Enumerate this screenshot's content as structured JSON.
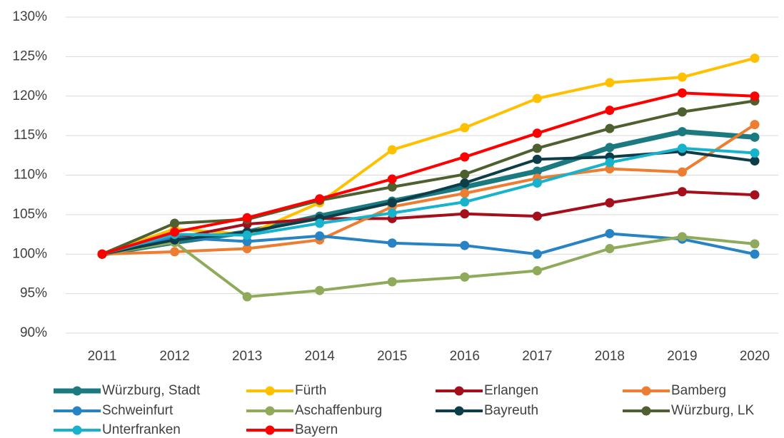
{
  "chart_data": {
    "type": "line",
    "x": [
      "2011",
      "2012",
      "2013",
      "2014",
      "2015",
      "2016",
      "2017",
      "2018",
      "2019",
      "2020"
    ],
    "ylim": [
      90,
      130
    ],
    "yticks": [
      {
        "value": 90,
        "label": "90%"
      },
      {
        "value": 95,
        "label": "95%"
      },
      {
        "value": 100,
        "label": "100%"
      },
      {
        "value": 105,
        "label": "105%"
      },
      {
        "value": 110,
        "label": "110%"
      },
      {
        "value": 115,
        "label": "115%"
      },
      {
        "value": 120,
        "label": "120%"
      },
      {
        "value": 125,
        "label": "125%"
      },
      {
        "value": 130,
        "label": "130%"
      }
    ],
    "grid": true,
    "legend": "bottom",
    "series": [
      {
        "name": "Würzburg, Stadt",
        "color": "#1b7a80",
        "values": [
          100,
          101.5,
          102.8,
          104.8,
          106.7,
          108.5,
          110.5,
          113.5,
          115.5,
          114.8
        ]
      },
      {
        "name": "Fürth",
        "color": "#ffc000",
        "values": [
          100,
          103.2,
          102.5,
          106.5,
          113.2,
          116,
          119.7,
          121.7,
          122.4,
          124.8
        ]
      },
      {
        "name": "Erlangen",
        "color": "#a50f1c",
        "values": [
          100,
          102,
          103.8,
          104.5,
          104.5,
          105.1,
          104.8,
          106.5,
          107.9,
          107.5
        ]
      },
      {
        "name": "Bamberg",
        "color": "#ed7d31",
        "values": [
          100,
          100.3,
          100.7,
          101.8,
          106,
          107.7,
          109.6,
          110.8,
          110.4,
          116.4
        ]
      },
      {
        "name": "Schweinfurt",
        "color": "#2883c4",
        "values": [
          100,
          102.1,
          101.6,
          102.3,
          101.4,
          101.1,
          100,
          102.6,
          101.9,
          100
        ]
      },
      {
        "name": "Aschaffenburg",
        "color": "#8faa5a",
        "values": [
          100,
          101.5,
          94.6,
          95.4,
          96.5,
          97.1,
          97.9,
          100.7,
          102.2,
          101.3
        ]
      },
      {
        "name": "Bayreuth",
        "color": "#0e3d4a",
        "values": [
          100,
          101.8,
          102.8,
          104.5,
          106.5,
          109,
          112,
          112.3,
          113,
          111.8
        ]
      },
      {
        "name": "Würzburg, LK",
        "color": "#4e5f30",
        "values": [
          100,
          103.9,
          104.4,
          106.8,
          108.5,
          110.1,
          113.4,
          115.9,
          118,
          119.4
        ]
      },
      {
        "name": "Unterfranken",
        "color": "#17b3cc",
        "values": [
          100,
          102.5,
          102.4,
          103.9,
          105.2,
          106.6,
          109,
          111.6,
          113.4,
          112.8
        ]
      },
      {
        "name": "Bayern",
        "color": "#ff0000",
        "values": [
          100,
          102.8,
          104.6,
          107,
          109.5,
          112.3,
          115.3,
          118.2,
          120.4,
          120
        ]
      }
    ]
  }
}
